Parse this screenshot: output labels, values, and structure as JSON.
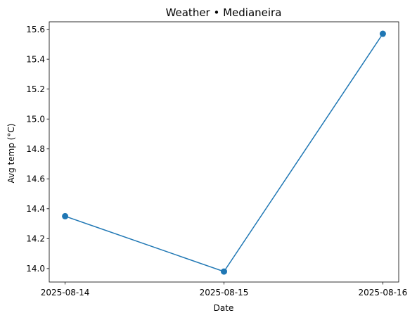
{
  "chart_data": {
    "type": "line",
    "title": "Weather • Medianeira",
    "xlabel": "Date",
    "ylabel": "Avg temp (°C)",
    "x": [
      "2025-08-14",
      "2025-08-15",
      "2025-08-16"
    ],
    "x_ticks": [
      "2025-08-14",
      "2025-08-15",
      "2025-08-16"
    ],
    "y_ticks": [
      14.0,
      14.2,
      14.4,
      14.6,
      14.8,
      15.0,
      15.2,
      15.4,
      15.6
    ],
    "y_tick_labels": [
      "14.0",
      "14.2",
      "14.4",
      "14.6",
      "14.8",
      "15.0",
      "15.2",
      "15.4",
      "15.6"
    ],
    "ylim": [
      13.91,
      15.65
    ],
    "series": [
      {
        "values": [
          14.35,
          13.98,
          15.57
        ],
        "color": "#1f77b4",
        "marker": "circle"
      }
    ],
    "grid": false,
    "legend": "none"
  }
}
